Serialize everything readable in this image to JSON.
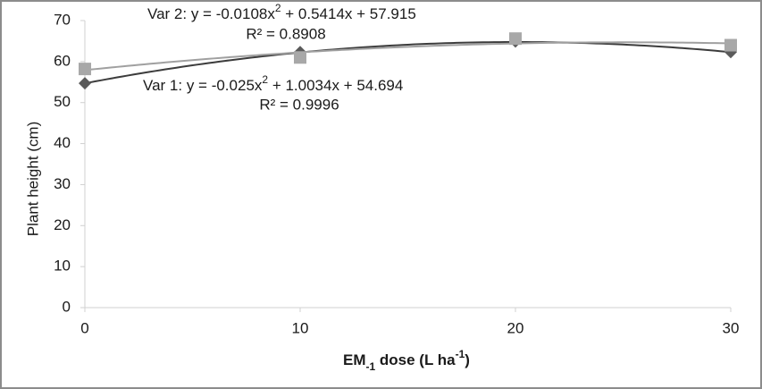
{
  "chart_data": {
    "type": "scatter",
    "y_label": "Plant height (cm)",
    "x_label_parts": [
      "EM",
      "-1",
      " dose (L ha",
      "-1",
      ")"
    ],
    "x": [
      0,
      10,
      20,
      30
    ],
    "xlim": [
      0,
      30
    ],
    "xticks": [
      0,
      10,
      20,
      30
    ],
    "ylim": [
      0,
      70
    ],
    "yticks": [
      0,
      10,
      20,
      30,
      40,
      50,
      60,
      70
    ],
    "series": [
      {
        "name": "Var 1",
        "color": "#5a5a5a",
        "line_color": "#3c3c3c",
        "marker": "diamond",
        "values": [
          54.7,
          62.3,
          64.9,
          62.3
        ],
        "trend": [
          -0.025,
          1.0034,
          54.694
        ],
        "equation_parts": [
          ": y = -0.025x",
          "2",
          " + 1.0034x + 54.694"
        ],
        "r2_label": "R² = 0.9996"
      },
      {
        "name": "Var 2",
        "color": "#a8a8a8",
        "line_color": "#a0a0a0",
        "marker": "square",
        "values": [
          58.2,
          61.0,
          65.6,
          64.0
        ],
        "trend": [
          -0.0108,
          0.5414,
          57.915
        ],
        "equation_parts": [
          ": y = -0.0108x",
          "2",
          " + 0.5414x + 57.915"
        ],
        "r2_label": "R² = 0.8908"
      }
    ]
  }
}
